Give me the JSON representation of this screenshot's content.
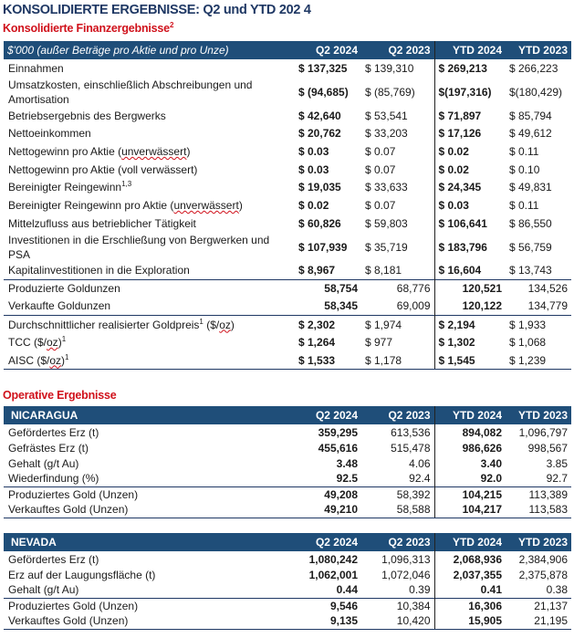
{
  "title": "KONSOLIDIERTE ERGEBNISSE: Q2 und YTD 202 4",
  "financial": {
    "heading": "Konsolidierte Finanzergebnisse",
    "heading_sup": "2",
    "columns": [
      "$'000 (außer Beträge pro Aktie und pro Unze)",
      "Q2 2024",
      "Q2 2023",
      "YTD 2024",
      "YTD 2023"
    ],
    "rows": [
      {
        "label": "Einnahmen",
        "values": [
          "$ 137,325",
          "$ 139,310",
          "$ 269,213",
          "$ 266,223"
        ]
      },
      {
        "label": "Umsatzkosten, einschließlich Abschreibungen und Amortisation",
        "values": [
          "$ (94,685)",
          "$ (85,769)",
          "$(197,316)",
          "$(180,429)"
        ],
        "tall": true
      },
      {
        "label": "Betriebsergebnis des Bergwerks",
        "values": [
          "$ 42,640",
          "$ 53,541",
          "$ 71,897",
          "$ 85,794"
        ]
      },
      {
        "label": "Nettoeinkommen",
        "values": [
          "$ 20,762",
          "$ 33,203",
          "$ 17,126",
          "$ 49,612"
        ]
      },
      {
        "label": "Nettogewinn pro Aktie (",
        "wavy": "unverwässert",
        "post": ")",
        "values": [
          "$ 0.03",
          "$ 0.07",
          "$ 0.02",
          "$ 0.11"
        ]
      },
      {
        "label": "Nettogewinn pro Aktie (voll verwässert)",
        "values": [
          "$ 0.03",
          "$ 0.07",
          "$ 0.02",
          "$ 0.10"
        ]
      },
      {
        "label": "Bereinigter Reingewinn",
        "sup": "1,3",
        "values": [
          "$ 19,035",
          "$ 33,633",
          "$ 24,345",
          "$ 49,831"
        ]
      },
      {
        "label": "Bereinigter Reingewinn pro Aktie (",
        "wavy": "unverwässert",
        "post": ")",
        "values": [
          "$ 0.02",
          "$ 0.07",
          "$ 0.03",
          "$ 0.11"
        ]
      },
      {
        "label": "Mittelzufluss aus betrieblicher Tätigkeit",
        "values": [
          "$ 60,826",
          "$ 59,803",
          "$ 106,641",
          "$ 86,550"
        ]
      },
      {
        "label": "Investitionen in die Erschließung von Bergwerken und PSA",
        "values": [
          "$ 107,939",
          "$ 35,719",
          "$ 183,796",
          "$ 56,759"
        ],
        "tall": true
      },
      {
        "label": "Kapitalinvestitionen in die Exploration",
        "values": [
          "$ 8,967",
          "$ 8,181",
          "$ 16,604",
          "$ 13,743"
        ]
      },
      {
        "label": "Produzierte Goldunzen",
        "values": [
          "58,754",
          "68,776",
          "120,521",
          "134,526"
        ],
        "right": true,
        "top": true
      },
      {
        "label": "Verkaufte Goldunzen",
        "values": [
          "58,345",
          "69,009",
          "120,122",
          "134,779"
        ],
        "right": true
      },
      {
        "label": "Durchschnittlicher realisierter Goldpreis",
        "sup": "1",
        "post": " ($/",
        "wavy2": "oz",
        "post2": ")",
        "values": [
          "$ 2,302",
          "$ 1,974",
          "$ 2,194",
          "$ 1,933"
        ],
        "top": true
      },
      {
        "label": "TCC ($/",
        "wavy": "oz",
        "post": ")",
        "sup2": "1",
        "values": [
          "$ 1,264",
          "$ 977",
          "$ 1,302",
          "$ 1,068"
        ]
      },
      {
        "label": "AISC ($/",
        "wavy": "oz",
        "post": ")",
        "sup2": "1",
        "values": [
          "$ 1,533",
          "$ 1,178",
          "$ 1,545",
          "$ 1,239"
        ],
        "last": true
      }
    ]
  },
  "operative": {
    "heading": "Operative Ergebnisse",
    "tables": [
      {
        "columns": [
          "NICARAGUA",
          "Q2 2024",
          "Q2 2023",
          "YTD 2024",
          "YTD 2023"
        ],
        "rows": [
          {
            "label": "Gefördertes Erz (t)",
            "values": [
              "359,295",
              "613,536",
              "894,082",
              "1,096,797"
            ]
          },
          {
            "label": "Gefrästes Erz (t)",
            "values": [
              "455,616",
              "515,478",
              "986,626",
              "998,567"
            ]
          },
          {
            "label": "Gehalt (g/t Au)",
            "values": [
              "3.48",
              "4.06",
              "3.40",
              "3.85"
            ]
          },
          {
            "label": "Wiederfindung (%)",
            "values": [
              "92.5",
              "92.4",
              "92.0",
              "92.7"
            ]
          },
          {
            "label": "Produziertes Gold (Unzen)",
            "values": [
              "49,208",
              "58,392",
              "104,215",
              "113,389"
            ],
            "top": true
          },
          {
            "label": "Verkauftes Gold (Unzen)",
            "values": [
              "49,210",
              "58,588",
              "104,217",
              "113,583"
            ],
            "last": true
          }
        ]
      },
      {
        "columns": [
          "NEVADA",
          "Q2 2024",
          "Q2 2023",
          "YTD 2024",
          "YTD 2023"
        ],
        "rows": [
          {
            "label": "Gefördertes Erz (t)",
            "values": [
              "1,080,242",
              "1,096,313",
              "2,068,936",
              "2,384,906"
            ]
          },
          {
            "label": "Erz auf der Laugungsfläche (t)",
            "values": [
              "1,062,001",
              "1,072,046",
              "2,037,355",
              "2,375,878"
            ]
          },
          {
            "label": "Gehalt (g/t Au)",
            "values": [
              "0.44",
              "0.39",
              "0.41",
              "0.38"
            ]
          },
          {
            "label": "Produziertes Gold (Unzen)",
            "values": [
              "9,546",
              "10,384",
              "16,306",
              "21,137"
            ],
            "top": true
          },
          {
            "label": "Verkauftes Gold (Unzen)",
            "values": [
              "9,135",
              "10,420",
              "15,905",
              "21,195"
            ],
            "last": true
          }
        ]
      }
    ]
  },
  "colors": {
    "header_bg": "#1f4e79",
    "title": "#1f3864",
    "subheading": "#d0111b"
  }
}
